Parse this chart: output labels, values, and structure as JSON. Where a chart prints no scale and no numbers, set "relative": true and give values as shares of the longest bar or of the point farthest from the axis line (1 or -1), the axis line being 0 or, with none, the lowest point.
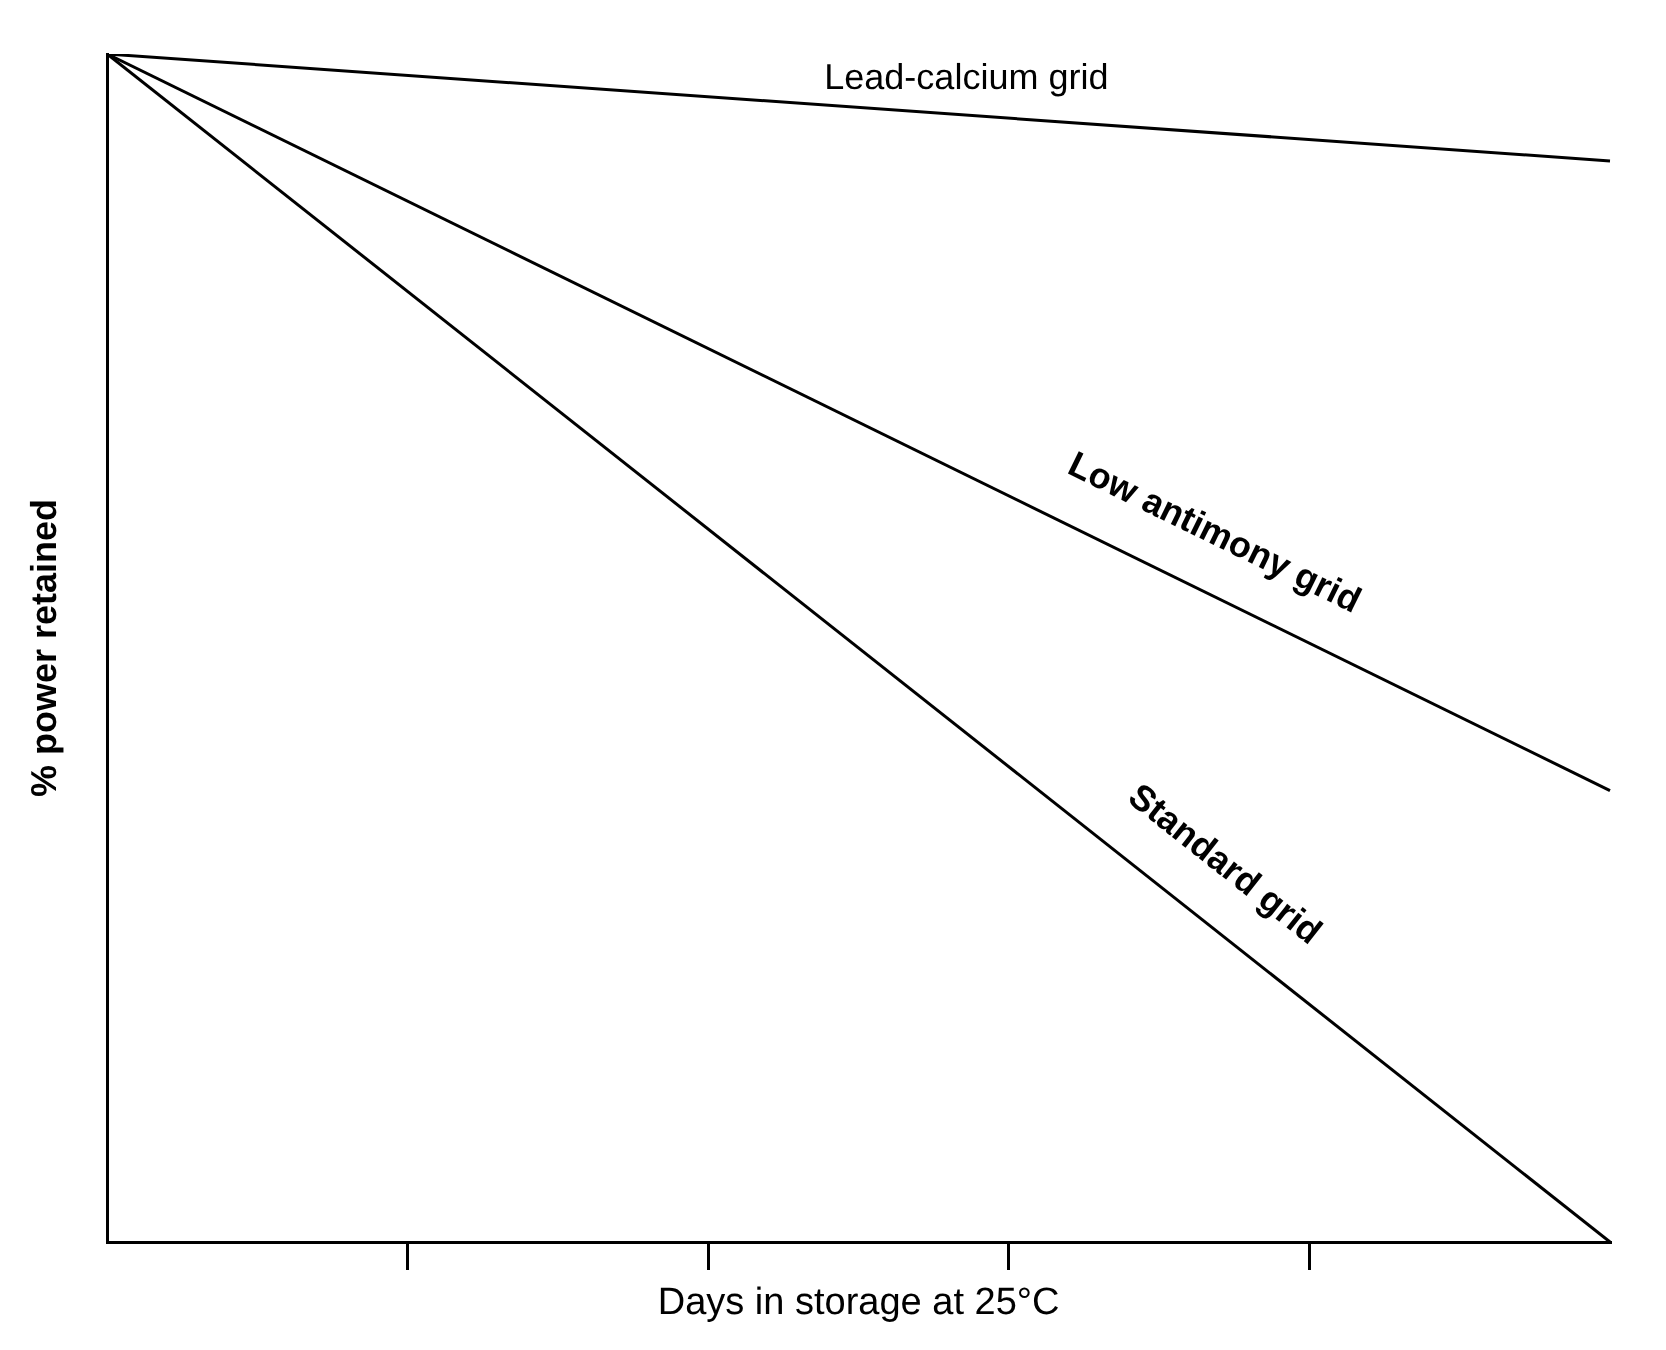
{
  "chart_data": {
    "type": "line",
    "relative": true,
    "xlabel": "Days in storage at 25°C",
    "ylabel": "% power retained",
    "categories": [
      null,
      null,
      null,
      null,
      null,
      null
    ],
    "series": [
      {
        "name": "Lead-calcium grid",
        "color": "#000000",
        "values": [
          1,
          null,
          null,
          null,
          null,
          0.91
        ]
      },
      {
        "name": "Low antimony grid",
        "color": "#000000",
        "values": [
          1,
          null,
          null,
          null,
          null,
          0.38
        ]
      },
      {
        "name": "Standard grid",
        "color": "#000000",
        "values": [
          1,
          null,
          null,
          null,
          null,
          0
        ]
      }
    ],
    "grid": false,
    "legend": false,
    "marker": "none",
    "line_style": "solid"
  }
}
